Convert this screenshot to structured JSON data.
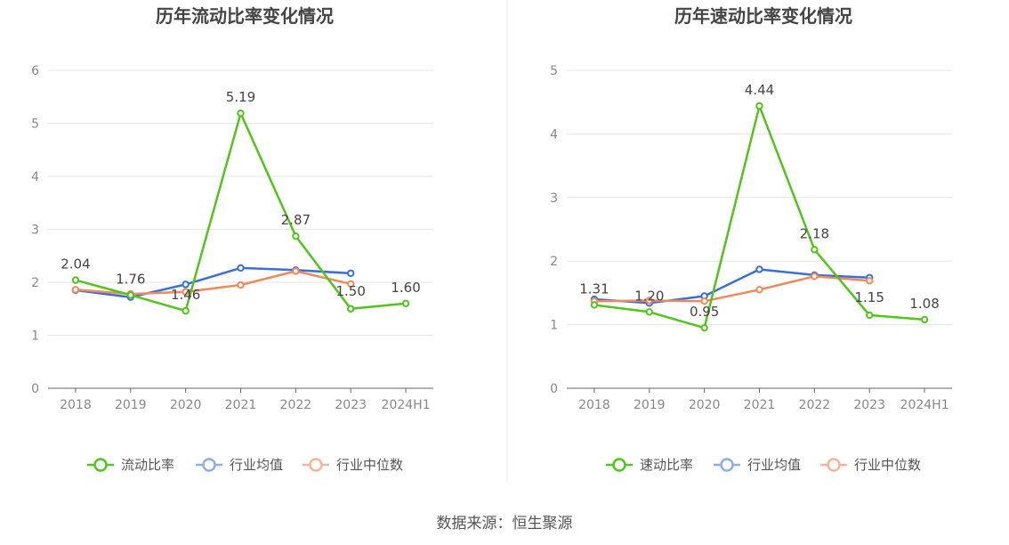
{
  "chart_data": [
    {
      "type": "line",
      "title": "历年流动比率变化情况",
      "categories": [
        "2018",
        "2019",
        "2020",
        "2021",
        "2022",
        "2023",
        "2024H1"
      ],
      "ylim": [
        0,
        6
      ],
      "yticks": [
        "0",
        "1",
        "2",
        "3",
        "4",
        "5",
        "6"
      ],
      "grid": true,
      "legend_position": "bottom-center",
      "series": [
        {
          "name": "流动比率",
          "color": "#52c41a",
          "values": [
            2.04,
            1.76,
            1.46,
            5.19,
            2.87,
            1.5,
            1.6
          ],
          "labels": [
            "2.04",
            "1.76",
            "1.46",
            "5.19",
            "2.87",
            "1.50",
            "1.60"
          ]
        },
        {
          "name": "行业均值",
          "color": "#3a6fd8",
          "legend_color": "#8eaee8",
          "values": [
            1.85,
            1.72,
            1.96,
            2.27,
            2.23,
            2.17,
            null
          ]
        },
        {
          "name": "行业中位数",
          "color": "#f08a5d",
          "legend_color": "#f7b39a",
          "values": [
            1.86,
            1.78,
            1.82,
            1.95,
            2.21,
            1.97,
            null
          ]
        }
      ]
    },
    {
      "type": "line",
      "title": "历年速动比率变化情况",
      "categories": [
        "2018",
        "2019",
        "2020",
        "2021",
        "2022",
        "2023",
        "2024H1"
      ],
      "ylim": [
        0,
        5
      ],
      "yticks": [
        "0",
        "1",
        "2",
        "3",
        "4",
        "5"
      ],
      "grid": true,
      "legend_position": "bottom-center",
      "series": [
        {
          "name": "速动比率",
          "color": "#52c41a",
          "values": [
            1.31,
            1.2,
            0.95,
            4.44,
            2.18,
            1.15,
            1.08
          ],
          "labels": [
            "1.31",
            "1.20",
            "0.95",
            "4.44",
            "2.18",
            "1.15",
            "1.08"
          ]
        },
        {
          "name": "行业均值",
          "color": "#3a6fd8",
          "legend_color": "#8eaee8",
          "values": [
            1.4,
            1.34,
            1.45,
            1.87,
            1.78,
            1.74,
            null
          ]
        },
        {
          "name": "行业中位数",
          "color": "#f08a5d",
          "legend_color": "#f7b39a",
          "values": [
            1.37,
            1.38,
            1.37,
            1.55,
            1.76,
            1.69,
            null
          ]
        }
      ]
    }
  ],
  "footer": {
    "source": "数据来源：恒生聚源"
  }
}
